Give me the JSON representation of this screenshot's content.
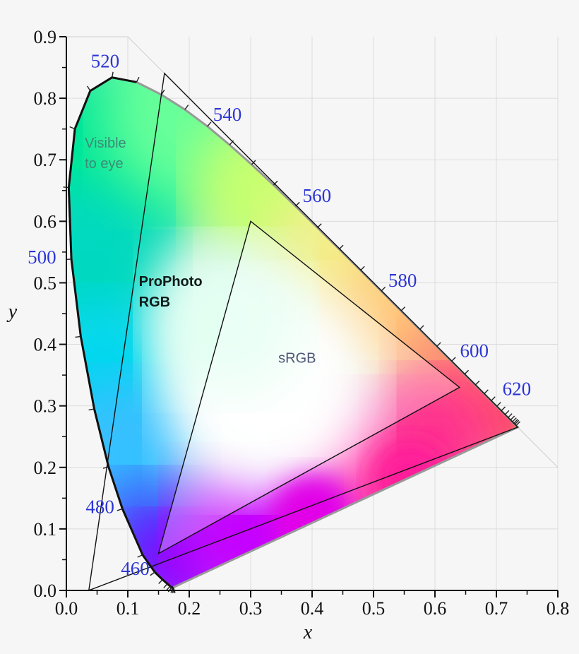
{
  "chart_data": {
    "type": "scatter",
    "xlabel": "x",
    "ylabel": "y",
    "xlim": [
      0.0,
      0.8
    ],
    "ylim": [
      0.0,
      0.9
    ],
    "x_ticks": [
      "0.0",
      "0.1",
      "0.2",
      "0.3",
      "0.4",
      "0.5",
      "0.6",
      "0.7",
      "0.8"
    ],
    "y_ticks": [
      "0.0",
      "0.1",
      "0.2",
      "0.3",
      "0.4",
      "0.5",
      "0.6",
      "0.7",
      "0.8",
      "0.9"
    ],
    "grid": true,
    "spectral_locus": [
      [
        0.1741,
        0.005
      ],
      [
        0.1738,
        0.0049
      ],
      [
        0.1733,
        0.0048
      ],
      [
        0.1726,
        0.0048
      ],
      [
        0.1714,
        0.0051
      ],
      [
        0.1689,
        0.0069
      ],
      [
        0.1644,
        0.0109
      ],
      [
        0.1566,
        0.0177
      ],
      [
        0.144,
        0.0297
      ],
      [
        0.1241,
        0.0578
      ],
      [
        0.0913,
        0.1327
      ],
      [
        0.0687,
        0.2007
      ],
      [
        0.0454,
        0.295
      ],
      [
        0.0235,
        0.4127
      ],
      [
        0.0082,
        0.5384
      ],
      [
        0.0039,
        0.6548
      ],
      [
        0.0139,
        0.7502
      ],
      [
        0.0389,
        0.812
      ],
      [
        0.0743,
        0.8338
      ],
      [
        0.1142,
        0.8262
      ],
      [
        0.1547,
        0.8059
      ],
      [
        0.1929,
        0.7816
      ],
      [
        0.2296,
        0.7543
      ],
      [
        0.2658,
        0.7243
      ],
      [
        0.3016,
        0.6923
      ],
      [
        0.3373,
        0.6589
      ],
      [
        0.3731,
        0.6245
      ],
      [
        0.4087,
        0.5896
      ],
      [
        0.4441,
        0.5547
      ],
      [
        0.4788,
        0.5202
      ],
      [
        0.5125,
        0.4866
      ],
      [
        0.5448,
        0.4544
      ],
      [
        0.5752,
        0.4242
      ],
      [
        0.6029,
        0.3965
      ],
      [
        0.627,
        0.3725
      ],
      [
        0.6482,
        0.3514
      ],
      [
        0.6658,
        0.334
      ],
      [
        0.6801,
        0.3197
      ],
      [
        0.6915,
        0.3083
      ],
      [
        0.7006,
        0.2993
      ],
      [
        0.7079,
        0.292
      ],
      [
        0.714,
        0.2859
      ],
      [
        0.719,
        0.2809
      ],
      [
        0.723,
        0.277
      ],
      [
        0.726,
        0.274
      ],
      [
        0.7283,
        0.2717
      ],
      [
        0.73,
        0.27
      ],
      [
        0.732,
        0.268
      ],
      [
        0.7347,
        0.2653
      ]
    ],
    "wavelength_marks": [
      {
        "label": "460",
        "nm": 460,
        "x": 0.144,
        "y": 0.0297
      },
      {
        "label": "480",
        "nm": 480,
        "x": 0.0913,
        "y": 0.1327
      },
      {
        "label": "500",
        "nm": 500,
        "x": 0.0082,
        "y": 0.5384
      },
      {
        "label": "520",
        "nm": 520,
        "x": 0.0743,
        "y": 0.8338
      },
      {
        "label": "540",
        "nm": 540,
        "x": 0.2296,
        "y": 0.7543
      },
      {
        "label": "560",
        "nm": 560,
        "x": 0.3731,
        "y": 0.6245
      },
      {
        "label": "580",
        "nm": 580,
        "x": 0.5125,
        "y": 0.4866
      },
      {
        "label": "600",
        "nm": 600,
        "x": 0.627,
        "y": 0.3725
      },
      {
        "label": "620",
        "nm": 620,
        "x": 0.6915,
        "y": 0.3083
      }
    ],
    "gamuts": [
      {
        "name": "ProPhoto RGB",
        "points": [
          [
            0.7347,
            0.2653
          ],
          [
            0.1596,
            0.8404
          ],
          [
            0.0366,
            0.0001
          ]
        ]
      },
      {
        "name": "sRGB",
        "points": [
          [
            0.64,
            0.33
          ],
          [
            0.3,
            0.6
          ],
          [
            0.15,
            0.06
          ]
        ]
      }
    ],
    "annotations": [
      {
        "text_lines": [
          "Visible",
          "to eye"
        ],
        "x": 0.03,
        "y": 0.72,
        "color": "#3c8a78",
        "bold": false
      },
      {
        "text_lines": [
          "ProPhoto",
          "RGB"
        ],
        "x": 0.118,
        "y": 0.495,
        "color": "#0d1a18",
        "bold": true
      },
      {
        "text_lines": [
          "sRGB"
        ],
        "x": 0.345,
        "y": 0.37,
        "color": "#4d5675",
        "bold": false
      }
    ]
  }
}
